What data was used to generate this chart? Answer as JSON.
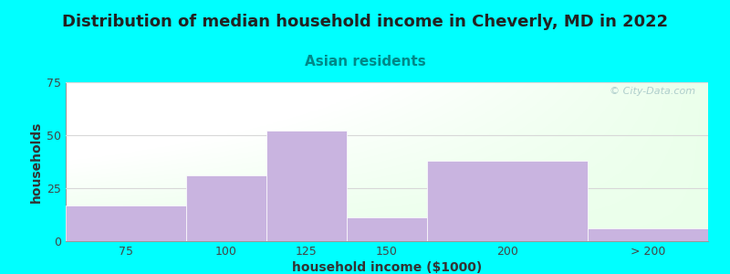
{
  "title": "Distribution of median household income in Cheverly, MD in 2022",
  "subtitle": "Asian residents",
  "xlabel": "household income ($1000)",
  "ylabel": "households",
  "bar_values": [
    17,
    31,
    52,
    11,
    38,
    6
  ],
  "bar_labels": [
    "75",
    "100",
    "125",
    "150",
    "200",
    "> 200"
  ],
  "bar_edges": [
    50,
    87.5,
    112.5,
    137.5,
    162.5,
    212.5,
    250
  ],
  "bar_color": "#c9b4e0",
  "bar_edgecolor": "#ffffff",
  "ylim": [
    0,
    75
  ],
  "yticks": [
    0,
    25,
    50,
    75
  ],
  "xlim": [
    50,
    250
  ],
  "background_color": "#00ffff",
  "title_fontsize": 13,
  "subtitle_fontsize": 11,
  "subtitle_color": "#008888",
  "axis_label_fontsize": 10,
  "tick_fontsize": 9,
  "watermark_text": "© City-Data.com",
  "watermark_color": "#a8c8c8",
  "grid_color": "#d8d8d8"
}
